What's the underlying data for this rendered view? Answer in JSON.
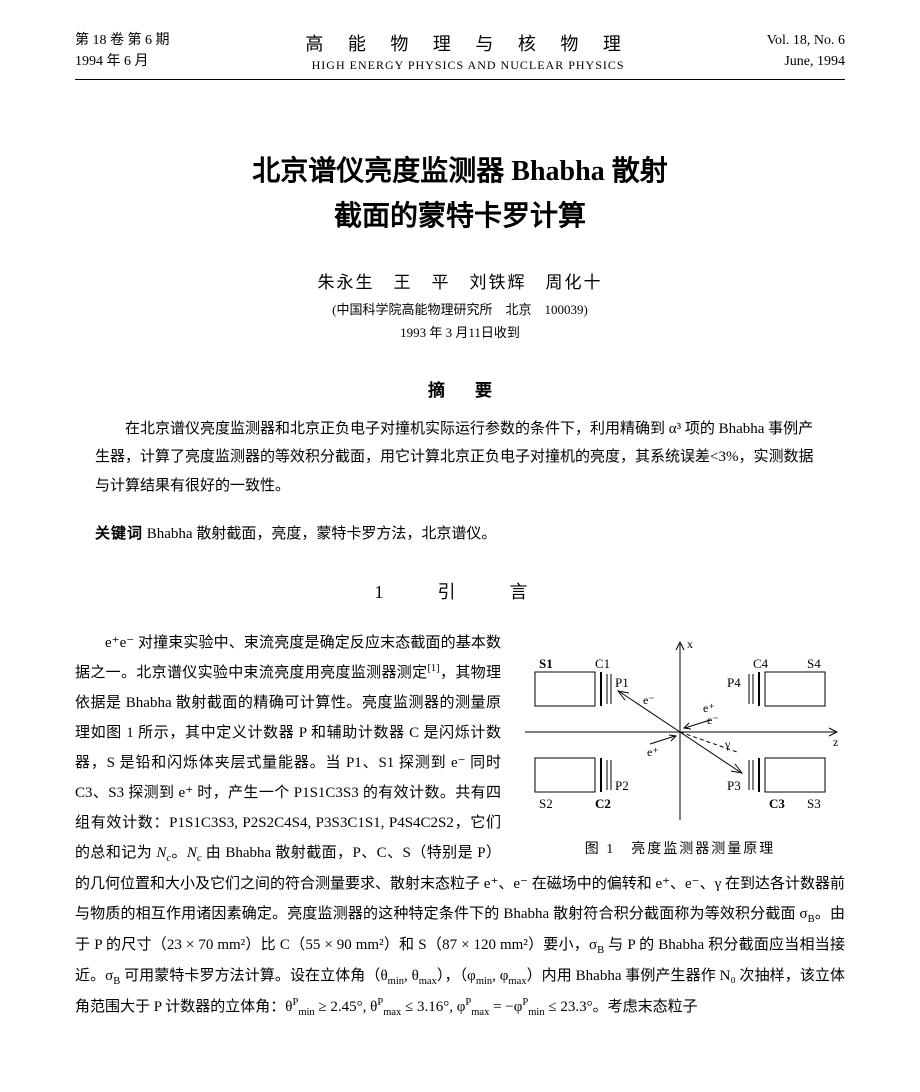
{
  "header": {
    "vol_issue_cn": "第 18 卷 第 6 期",
    "date_cn": "1994 年 6 月",
    "journal_cn": "高 能 物 理 与 核 物 理",
    "journal_en": "HIGH ENERGY PHYSICS AND NUCLEAR PHYSICS",
    "vol_issue_en": "Vol. 18, No. 6",
    "date_en": "June, 1994"
  },
  "title_line1": "北京谱仪亮度监测器 Bhabha 散射",
  "title_line2": "截面的蒙特卡罗计算",
  "authors": "朱永生　王　平　刘铁辉　周化十",
  "affiliation": "(中国科学院高能物理研究所　北京　100039)",
  "received": "1993 年 3 月11日收到",
  "abstract_title": "摘要",
  "abstract_body": "在北京谱仪亮度监测器和北京正负电子对撞机实际运行参数的条件下，利用精确到 α³ 项的 Bhabha 事例产生器，计算了亮度监测器的等效积分截面，用它计算北京正负电子对撞机的亮度，其系统误差<3%，实测数据与计算结果有很好的一致性。",
  "keywords_label": "关键词",
  "keywords_text": "Bhabha 散射截面，亮度，蒙特卡罗方法，北京谱仪。",
  "section1_title": "1　引　言",
  "body_html": "e⁺e⁻ 对撞束实验中、束流亮度是确定反应末态截面的基本数据之一。北京谱仪实验中束流亮度用亮度监测器测定<sup>[1]</sup>，其物理依据是 Bhabha 散射截面的精确可计算性。亮度监测器的测量原理如图 1 所示，其中定义计数器 P 和辅助计数器 C 是闪烁计数器，S 是铅和闪烁体夹层式量能器。当 P1、S1 探测到 e⁻ 同时 C3、S3 探测到 e⁺ 时，产生一个 P1S1C3S3 的有效计数。共有四组有效计数：P1S1C3S3, P2S2C4S4, P3S3C1S1, P4S4C2S2，它们的总和记为 <i>N<sub>c</sub></i>。<i>N<sub>c</sub></i> 由 Bhabha 散射截面，P、C、S（特别是 P）的几何位置和大小及它们之间的符合测量要求、散射末态粒子 e⁺、e⁻ 在磁场中的偏转和 e⁺、e⁻、γ 在到达各计数器前与物质的相互作用诸因素确定。亮度监测器的这种特定条件下的 Bhabha 散射符合积分截面称为等效积分截面 σ<sub>B</sub>。由于 P 的尺寸（23 × 70 mm²）比 C（55 × 90 mm²）和 S（87 × 120 mm²）要小，σ<sub>B</sub> 与 P 的 Bhabha 积分截面应当相当接近。σ<sub>B</sub> 可用蒙特卡罗方法计算。设在立体角（θ<sub>min</sub>, θ<sub>max</sub>），（φ<sub>min</sub>, φ<sub>max</sub>）内用 Bhabha 事例产生器作 N₀ 次抽样，该立体角范围大于 P 计数器的立体角：θ<sup>P</sup><sub>min</sub> ≥ 2.45°, θ<sup>P</sup><sub>max</sub> ≤ 3.16°, φ<sup>P</sup><sub>max</sub> = −φ<sup>P</sup><sub>min</sub> ≤ 23.3°。考虑末态粒子",
  "figure": {
    "caption": "图 1　亮度监测器测量原理",
    "labels": {
      "s1": "S1",
      "c1": "C1",
      "p1": "P1",
      "s2": "S2",
      "c2": "C2",
      "p2": "P2",
      "s3": "S3",
      "c3": "C3",
      "p3": "P3",
      "s4": "S4",
      "c4": "C4",
      "p4": "P4",
      "em_top": "e⁻",
      "em_bot": "e⁻",
      "ep_top": "e⁺",
      "ep_bot": "e⁺",
      "gamma": "γ",
      "x_axis": "x",
      "z_axis": "z"
    },
    "style": {
      "stroke": "#000000",
      "stroke_width": 1,
      "box_fill": "none",
      "font_size": 12,
      "font_family": "serif"
    }
  },
  "colors": {
    "text": "#000000",
    "background": "#ffffff"
  }
}
